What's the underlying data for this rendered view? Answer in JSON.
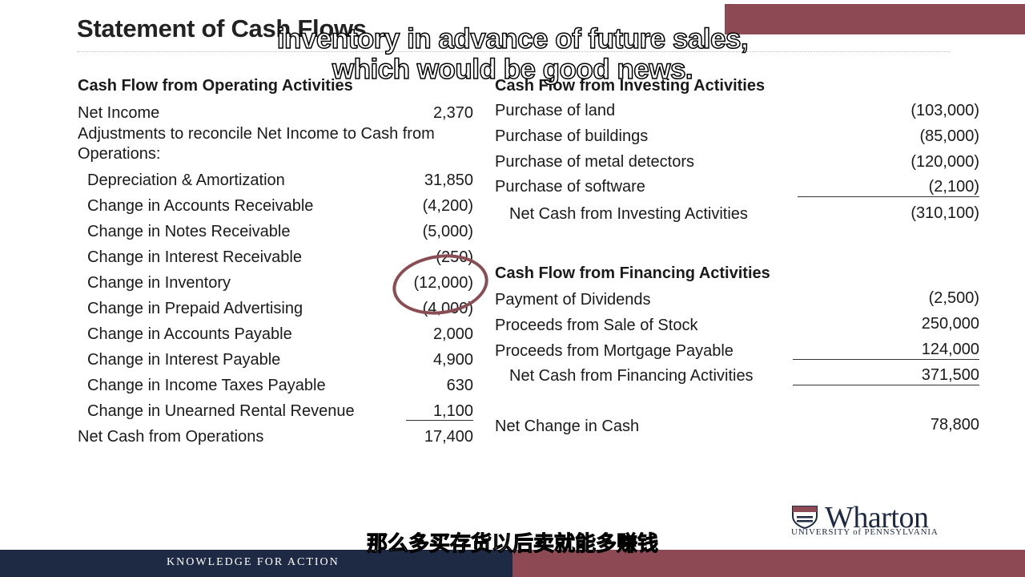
{
  "slide": {
    "title": "Statement of Cash Flows"
  },
  "operating": {
    "heading": "Cash Flow from Operating Activities",
    "net_income_label": "Net Income",
    "net_income_value": "2,370",
    "adjust_line1": "Adjustments to reconcile Net Income to Cash from",
    "adjust_line2": "Operations:",
    "items": [
      {
        "label": "Depreciation & Amortization",
        "value": "31,850"
      },
      {
        "label": "Change in Accounts Receivable",
        "value": "(4,200)"
      },
      {
        "label": "Change in Notes Receivable",
        "value": "(5,000)"
      },
      {
        "label": "Change in Interest Receivable",
        "value": "(250)"
      },
      {
        "label": "Change in Inventory",
        "value": "(12,000)"
      },
      {
        "label": "Change in Prepaid Advertising",
        "value": "(4,000)"
      },
      {
        "label": "Change in Accounts Payable",
        "value": "2,000"
      },
      {
        "label": "Change in Interest Payable",
        "value": "4,900"
      },
      {
        "label": "Change in Income Taxes Payable",
        "value": "630"
      },
      {
        "label": "Change in Unearned Rental Revenue",
        "value": "1,100"
      }
    ],
    "total_label": "Net Cash from Operations",
    "total_value": "17,400"
  },
  "investing": {
    "heading": "Cash Flow from Investing Activities",
    "items": [
      {
        "label": "Purchase of land",
        "value": "(103,000)"
      },
      {
        "label": "Purchase of buildings",
        "value": "(85,000)"
      },
      {
        "label": "Purchase of metal detectors",
        "value": "(120,000)"
      },
      {
        "label": "Purchase of software",
        "value": "(2,100)"
      }
    ],
    "total_label": "Net Cash from Investing Activities",
    "total_value": "(310,100)"
  },
  "financing": {
    "heading": "Cash Flow from Financing Activities",
    "items": [
      {
        "label": "Payment of Dividends",
        "value": "(2,500)"
      },
      {
        "label": "Proceeds from Sale of Stock",
        "value": "250,000"
      },
      {
        "label": "Proceeds from Mortgage Payable",
        "value": "124,000"
      }
    ],
    "total_label": "Net Cash from Financing Activities",
    "total_value": "371,500"
  },
  "net_change": {
    "label": "Net Change in Cash",
    "value": "78,800"
  },
  "captions": {
    "en_line1": "inventory in advance of future sales,",
    "en_line2": "which would be good news.",
    "zh": "那么多买存货以后卖就能多赚钱"
  },
  "footer": {
    "text": "KNOWLEDGE FOR ACTION"
  },
  "logo": {
    "word": "Wharton",
    "subtitle": "UNIVERSITY of PENNSYLVANIA"
  },
  "colors": {
    "accent": "#8d4a55",
    "navy": "#1e2a44",
    "annotation": "#8a4d54"
  }
}
